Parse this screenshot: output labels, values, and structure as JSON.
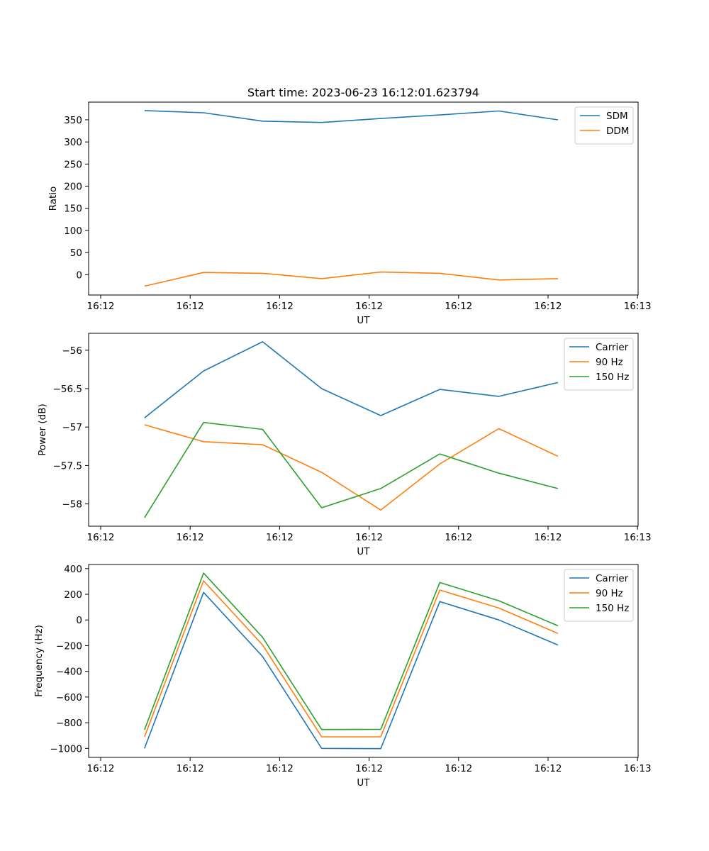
{
  "figure_title": "Start time: 2023-06-23 16:12:01.623794",
  "colors": {
    "blue": "#1f77b4",
    "orange": "#ff7f0e",
    "green": "#2ca02c"
  },
  "chart_data": [
    {
      "type": "line",
      "title": "Start time: 2023-06-23 16:12:01.623794",
      "xlabel": "UT",
      "ylabel": "Ratio",
      "x_ticks": [
        "16:12",
        "16:12",
        "16:12",
        "16:12",
        "16:12",
        "16:12",
        "16:13"
      ],
      "y_ticks": [
        0,
        50,
        100,
        150,
        200,
        250,
        300,
        350
      ],
      "ylim": [
        -46,
        390
      ],
      "legend": "top-right",
      "grid": false,
      "series": [
        {
          "name": "SDM",
          "color": "#1f77b4",
          "values": [
            371,
            366,
            347,
            344,
            353,
            361,
            370,
            350
          ]
        },
        {
          "name": "DDM",
          "color": "#ff7f0e",
          "values": [
            -26,
            5,
            3,
            -9,
            6,
            3,
            -12,
            -9
          ]
        }
      ]
    },
    {
      "type": "line",
      "xlabel": "UT",
      "ylabel": "Power (dB)",
      "x_ticks": [
        "16:12",
        "16:12",
        "16:12",
        "16:12",
        "16:12",
        "16:12",
        "16:13"
      ],
      "y_ticks": [
        -58.0,
        -57.5,
        -57.0,
        -56.5,
        -56.0
      ],
      "ylim": [
        -58.29,
        -55.78
      ],
      "legend": "top-right",
      "grid": false,
      "series": [
        {
          "name": "Carrier",
          "color": "#1f77b4",
          "values": [
            -56.88,
            -56.27,
            -55.89,
            -56.5,
            -56.85,
            -56.51,
            -56.6,
            -56.42
          ]
        },
        {
          "name": "90 Hz",
          "color": "#ff7f0e",
          "values": [
            -56.97,
            -57.19,
            -57.23,
            -57.59,
            -58.08,
            -57.48,
            -57.02,
            -57.38
          ]
        },
        {
          "name": "150 Hz",
          "color": "#2ca02c",
          "values": [
            -58.18,
            -56.94,
            -57.03,
            -58.05,
            -57.8,
            -57.35,
            -57.6,
            -57.8
          ]
        }
      ]
    },
    {
      "type": "line",
      "xlabel": "UT",
      "ylabel": "Frequency (Hz)",
      "x_ticks": [
        "16:12",
        "16:12",
        "16:12",
        "16:12",
        "16:12",
        "16:12",
        "16:13"
      ],
      "y_ticks": [
        -1000,
        -800,
        -600,
        -400,
        -200,
        0,
        200,
        400
      ],
      "ylim": [
        -1070,
        432
      ],
      "legend": "top-right",
      "grid": false,
      "series": [
        {
          "name": "Carrier",
          "color": "#1f77b4",
          "values": [
            -1000,
            215,
            -285,
            -1000,
            -1002,
            143,
            0,
            -195
          ]
        },
        {
          "name": "90 Hz",
          "color": "#ff7f0e",
          "values": [
            -910,
            305,
            -195,
            -910,
            -910,
            233,
            93,
            -105
          ]
        },
        {
          "name": "150 Hz",
          "color": "#2ca02c",
          "values": [
            -855,
            365,
            -135,
            -853,
            -852,
            292,
            150,
            -45
          ]
        }
      ]
    }
  ]
}
